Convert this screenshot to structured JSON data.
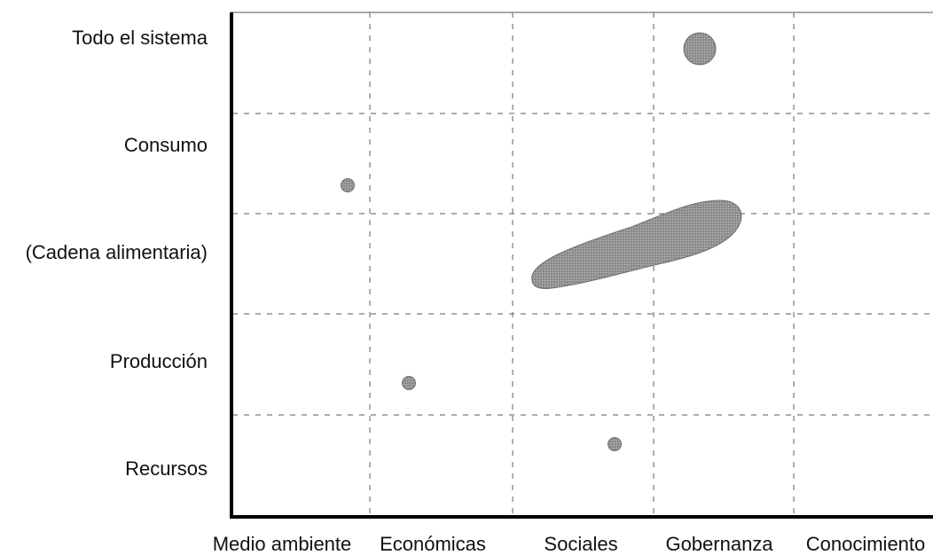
{
  "chart_data": {
    "type": "scatter",
    "title": "",
    "xlabel": "",
    "ylabel": "",
    "x_categories": [
      "Medio ambiente",
      "Económicas",
      "Sociales",
      "Gobernanza",
      "Conocimiento"
    ],
    "y_categories": [
      "Todo el sistema",
      "Consumo",
      "(Cadena alimentaria)",
      "Producción",
      "Recursos"
    ],
    "grid": true,
    "points": [
      {
        "x": "Gobernanza",
        "y": "Todo el sistema",
        "size": "large"
      },
      {
        "x": "Medio ambiente",
        "y": "Consumo",
        "size": "small"
      },
      {
        "x": "Económicas",
        "y": "Producción",
        "size": "small"
      },
      {
        "x": "Sociales",
        "y": "Recursos",
        "size": "small"
      }
    ],
    "regions": [
      {
        "shape": "elongated-blob",
        "x_from": "Sociales",
        "x_to": "Gobernanza",
        "y_from": "(Cadena alimentaria)",
        "y_to": "(Cadena alimentaria)"
      }
    ],
    "colors": {
      "marker_fill": "#8c8c8c",
      "marker_stroke": "#6e6e6e",
      "grid": "#7a7a7a",
      "axis": "#000000"
    }
  }
}
